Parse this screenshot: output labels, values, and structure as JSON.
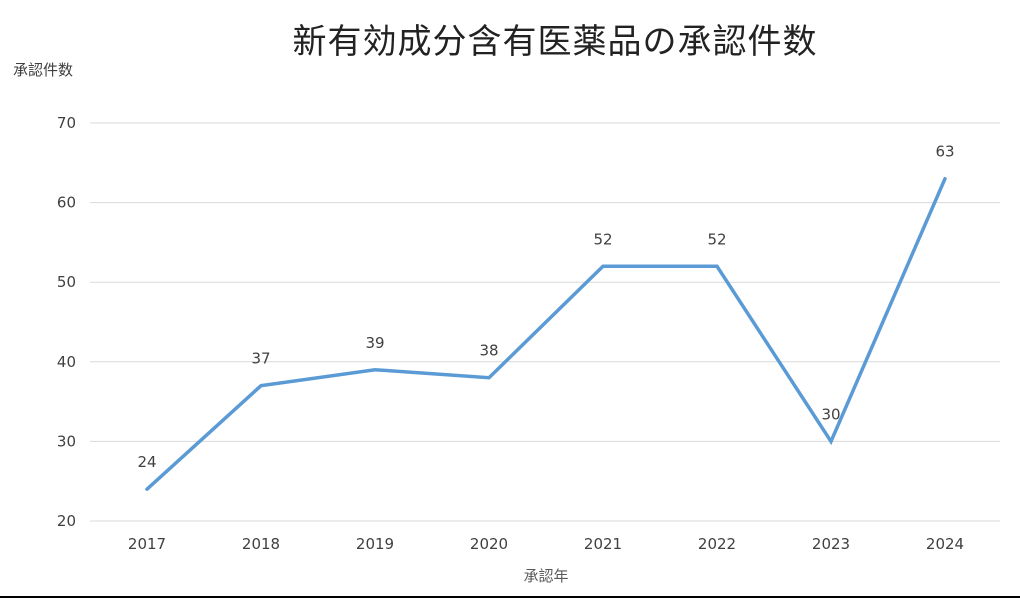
{
  "chart": {
    "title": "新有効成分含有医薬品の承認件数",
    "ylabel": "承認件数",
    "xlabel": "承認年"
  },
  "chart_data": {
    "type": "line",
    "title": "新有効成分含有医薬品の承認件数",
    "xlabel": "承認年",
    "ylabel": "承認件数",
    "categories": [
      "2017",
      "2018",
      "2019",
      "2020",
      "2021",
      "2022",
      "2023",
      "2024"
    ],
    "series": [
      {
        "name": "承認件数",
        "values": [
          24,
          37,
          39,
          38,
          52,
          52,
          30,
          63
        ],
        "color": "#5B9BD5"
      }
    ],
    "data_labels": true,
    "ylim": [
      20,
      70
    ],
    "yticks": [
      20,
      30,
      40,
      50,
      60,
      70
    ],
    "grid": {
      "horizontal": true,
      "vertical": false,
      "color": "#D9D9D9"
    },
    "legend": null
  }
}
